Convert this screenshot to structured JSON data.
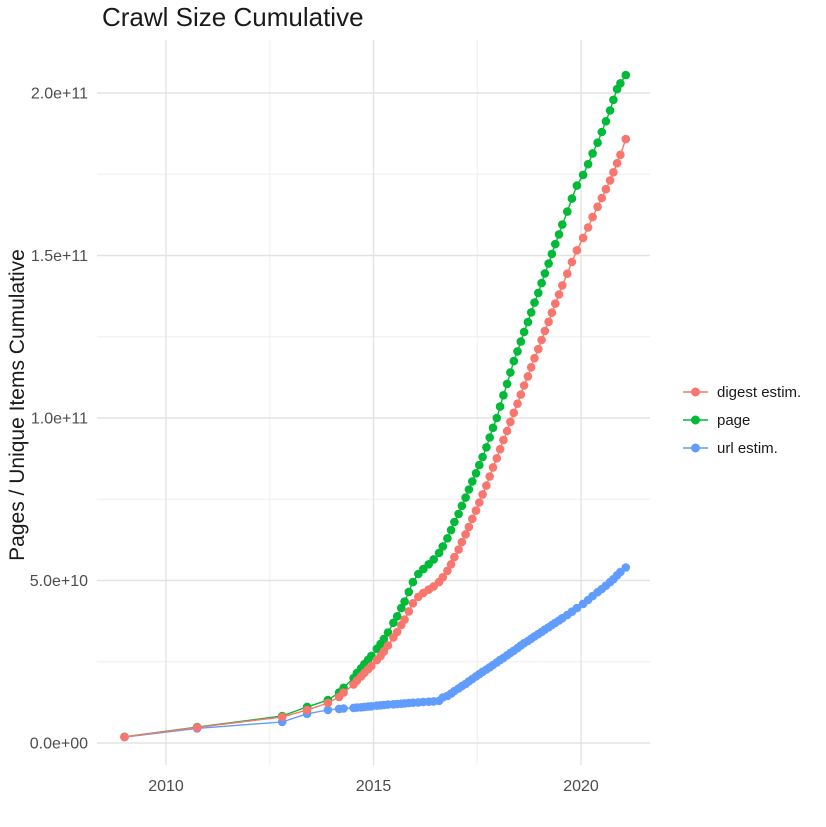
{
  "title": "Crawl Size Cumulative",
  "y_axis": {
    "label": "Pages / Unique Items Cumulative",
    "ticks": [
      "0.0e+00",
      "5.0e+10",
      "1.0e+11",
      "1.5e+11",
      "2.0e+11"
    ],
    "tick_values": [
      0,
      50000000000.0,
      100000000000.0,
      150000000000.0,
      200000000000.0
    ]
  },
  "x_axis": {
    "label": "",
    "ticks": [
      "2010",
      "2015",
      "2020"
    ],
    "tick_values": [
      2010,
      2015,
      2020
    ]
  },
  "legend": {
    "position": "right",
    "items": [
      {
        "label": "digest estim.",
        "color": "#F8766D"
      },
      {
        "label": "page",
        "color": "#00BA38"
      },
      {
        "label": "url estim.",
        "color": "#619CFF"
      }
    ]
  },
  "colors": {
    "grid_major": "#e3e3e3",
    "grid_minor": "#f1f1f1",
    "tick_text": "#4d4d4d",
    "text": "#1a1a1a",
    "background": "#ffffff"
  },
  "chart_data": {
    "type": "scatter",
    "title": "Crawl Size Cumulative",
    "xlabel": "",
    "ylabel": "Pages / Unique Items Cumulative",
    "xlim": [
      2008.4,
      2021.7
    ],
    "ylim": [
      0,
      215000000000.0
    ],
    "grid": true,
    "legend_position": "right",
    "marker_line": true,
    "series": [
      {
        "name": "page",
        "color": "#00BA38",
        "points": [
          [
            2009.0,
            1900000000.0
          ],
          [
            2010.75,
            4900000000.0
          ],
          [
            2012.8,
            8300000000.0
          ],
          [
            2013.4,
            11100000000.0
          ],
          [
            2013.9,
            13200000000.0
          ],
          [
            2014.17,
            15500000000.0
          ],
          [
            2014.28,
            17000000000.0
          ],
          [
            2014.52,
            20000000000.0
          ],
          [
            2014.6,
            21500000000.0
          ],
          [
            2014.7,
            23000000000.0
          ],
          [
            2014.78,
            24300000000.0
          ],
          [
            2014.87,
            25600000000.0
          ],
          [
            2014.95,
            26800000000.0
          ],
          [
            2015.08,
            29000000000.0
          ],
          [
            2015.17,
            30500000000.0
          ],
          [
            2015.25,
            32000000000.0
          ],
          [
            2015.35,
            34000000000.0
          ],
          [
            2015.48,
            37000000000.0
          ],
          [
            2015.57,
            39000000000.0
          ],
          [
            2015.67,
            41500000000.0
          ],
          [
            2015.75,
            43500000000.0
          ],
          [
            2015.85,
            46500000000.0
          ],
          [
            2015.95,
            49500000000.0
          ],
          [
            2016.08,
            52000000000.0
          ],
          [
            2016.2,
            53500000000.0
          ],
          [
            2016.33,
            55000000000.0
          ],
          [
            2016.45,
            56500000000.0
          ],
          [
            2016.58,
            58500000000.0
          ],
          [
            2016.67,
            60500000000.0
          ],
          [
            2016.78,
            63000000000.0
          ],
          [
            2016.87,
            65500000000.0
          ],
          [
            2016.95,
            68000000000.0
          ],
          [
            2017.05,
            70500000000.0
          ],
          [
            2017.13,
            73000000000.0
          ],
          [
            2017.22,
            75500000000.0
          ],
          [
            2017.3,
            78000000000.0
          ],
          [
            2017.38,
            80500000000.0
          ],
          [
            2017.47,
            83000000000.0
          ],
          [
            2017.55,
            85500000000.0
          ],
          [
            2017.63,
            88000000000.0
          ],
          [
            2017.72,
            91000000000.0
          ],
          [
            2017.8,
            94000000000.0
          ],
          [
            2017.88,
            97000000000.0
          ],
          [
            2017.97,
            100000000000.0
          ],
          [
            2018.05,
            103500000000.0
          ],
          [
            2018.13,
            107000000000.0
          ],
          [
            2018.22,
            110500000000.0
          ],
          [
            2018.3,
            114000000000.0
          ],
          [
            2018.38,
            117500000000.0
          ],
          [
            2018.47,
            120500000000.0
          ],
          [
            2018.55,
            123500000000.0
          ],
          [
            2018.63,
            126500000000.0
          ],
          [
            2018.72,
            129500000000.0
          ],
          [
            2018.8,
            132500000000.0
          ],
          [
            2018.88,
            135500000000.0
          ],
          [
            2018.97,
            138500000000.0
          ],
          [
            2019.05,
            141500000000.0
          ],
          [
            2019.13,
            144500000000.0
          ],
          [
            2019.22,
            147500000000.0
          ],
          [
            2019.3,
            150500000000.0
          ],
          [
            2019.38,
            153500000000.0
          ],
          [
            2019.47,
            156500000000.0
          ],
          [
            2019.55,
            159500000000.0
          ],
          [
            2019.67,
            163500000000.0
          ],
          [
            2019.78,
            167500000000.0
          ],
          [
            2019.9,
            171500000000.0
          ],
          [
            2020.05,
            174800000000.0
          ],
          [
            2020.17,
            178100000000.0
          ],
          [
            2020.28,
            181400000000.0
          ],
          [
            2020.4,
            184700000000.0
          ],
          [
            2020.5,
            188000000000.0
          ],
          [
            2020.6,
            191300000000.0
          ],
          [
            2020.7,
            194600000000.0
          ],
          [
            2020.78,
            197900000000.0
          ],
          [
            2020.87,
            201200000000.0
          ],
          [
            2020.95,
            203000000000.0
          ],
          [
            2021.08,
            205500000000.0
          ]
        ]
      },
      {
        "name": "url estim.",
        "color": "#619CFF",
        "points": [
          [
            2009.0,
            1800000000.0
          ],
          [
            2010.75,
            4500000000.0
          ],
          [
            2012.8,
            6500000000.0
          ],
          [
            2013.4,
            9000000000.0
          ],
          [
            2013.9,
            10200000000.0
          ],
          [
            2014.17,
            10500000000.0
          ],
          [
            2014.28,
            10600000000.0
          ],
          [
            2014.52,
            10800000000.0
          ],
          [
            2014.6,
            10900000000.0
          ],
          [
            2014.7,
            11000000000.0
          ],
          [
            2014.78,
            11100000000.0
          ],
          [
            2014.87,
            11200000000.0
          ],
          [
            2014.95,
            11300000000.0
          ],
          [
            2015.08,
            11500000000.0
          ],
          [
            2015.17,
            11600000000.0
          ],
          [
            2015.25,
            11700000000.0
          ],
          [
            2015.35,
            11800000000.0
          ],
          [
            2015.48,
            11900000000.0
          ],
          [
            2015.57,
            12000000000.0
          ],
          [
            2015.67,
            12100000000.0
          ],
          [
            2015.75,
            12200000000.0
          ],
          [
            2015.85,
            12300000000.0
          ],
          [
            2015.95,
            12400000000.0
          ],
          [
            2016.08,
            12500000000.0
          ],
          [
            2016.2,
            12600000000.0
          ],
          [
            2016.33,
            12700000000.0
          ],
          [
            2016.45,
            12800000000.0
          ],
          [
            2016.58,
            13000000000.0
          ],
          [
            2016.67,
            14000000000.0
          ],
          [
            2016.78,
            14500000000.0
          ],
          [
            2016.87,
            15200000000.0
          ],
          [
            2016.95,
            16000000000.0
          ],
          [
            2017.05,
            16800000000.0
          ],
          [
            2017.13,
            17500000000.0
          ],
          [
            2017.22,
            18200000000.0
          ],
          [
            2017.3,
            19000000000.0
          ],
          [
            2017.38,
            19700000000.0
          ],
          [
            2017.47,
            20500000000.0
          ],
          [
            2017.55,
            21200000000.0
          ],
          [
            2017.63,
            21900000000.0
          ],
          [
            2017.72,
            22600000000.0
          ],
          [
            2017.8,
            23300000000.0
          ],
          [
            2017.88,
            24000000000.0
          ],
          [
            2017.97,
            24800000000.0
          ],
          [
            2018.05,
            25500000000.0
          ],
          [
            2018.13,
            26200000000.0
          ],
          [
            2018.22,
            27000000000.0
          ],
          [
            2018.3,
            27700000000.0
          ],
          [
            2018.38,
            28400000000.0
          ],
          [
            2018.47,
            29200000000.0
          ],
          [
            2018.55,
            30000000000.0
          ],
          [
            2018.63,
            30700000000.0
          ],
          [
            2018.72,
            31400000000.0
          ],
          [
            2018.8,
            32100000000.0
          ],
          [
            2018.88,
            32800000000.0
          ],
          [
            2018.97,
            33500000000.0
          ],
          [
            2019.05,
            34200000000.0
          ],
          [
            2019.13,
            34900000000.0
          ],
          [
            2019.22,
            35600000000.0
          ],
          [
            2019.3,
            36300000000.0
          ],
          [
            2019.38,
            37000000000.0
          ],
          [
            2019.47,
            37700000000.0
          ],
          [
            2019.55,
            38400000000.0
          ],
          [
            2019.67,
            39400000000.0
          ],
          [
            2019.78,
            40400000000.0
          ],
          [
            2019.9,
            41500000000.0
          ],
          [
            2020.05,
            42800000000.0
          ],
          [
            2020.17,
            44000000000.0
          ],
          [
            2020.28,
            45200000000.0
          ],
          [
            2020.4,
            46400000000.0
          ],
          [
            2020.5,
            47400000000.0
          ],
          [
            2020.6,
            48400000000.0
          ],
          [
            2020.7,
            49500000000.0
          ],
          [
            2020.78,
            50400000000.0
          ],
          [
            2020.87,
            51600000000.0
          ],
          [
            2020.95,
            52600000000.0
          ],
          [
            2021.08,
            54000000000.0
          ]
        ]
      },
      {
        "name": "digest estim.",
        "color": "#F8766D",
        "points": [
          [
            2009.0,
            1850000000.0
          ],
          [
            2010.75,
            4800000000.0
          ],
          [
            2012.8,
            8000000000.0
          ],
          [
            2013.4,
            10200000000.0
          ],
          [
            2013.9,
            12300000000.0
          ],
          [
            2014.17,
            14200000000.0
          ],
          [
            2014.28,
            15500000000.0
          ],
          [
            2014.52,
            18000000000.0
          ],
          [
            2014.6,
            19200000000.0
          ],
          [
            2014.7,
            20500000000.0
          ],
          [
            2014.78,
            21600000000.0
          ],
          [
            2014.87,
            22700000000.0
          ],
          [
            2014.95,
            23700000000.0
          ],
          [
            2015.08,
            25500000000.0
          ],
          [
            2015.17,
            26800000000.0
          ],
          [
            2015.25,
            28200000000.0
          ],
          [
            2015.35,
            30000000000.0
          ],
          [
            2015.48,
            32500000000.0
          ],
          [
            2015.57,
            34200000000.0
          ],
          [
            2015.67,
            36300000000.0
          ],
          [
            2015.75,
            38000000000.0
          ],
          [
            2015.85,
            40500000000.0
          ],
          [
            2015.95,
            43000000000.0
          ],
          [
            2016.08,
            45000000000.0
          ],
          [
            2016.2,
            46200000000.0
          ],
          [
            2016.33,
            47200000000.0
          ],
          [
            2016.45,
            48200000000.0
          ],
          [
            2016.58,
            49500000000.0
          ],
          [
            2016.67,
            51000000000.0
          ],
          [
            2016.78,
            53000000000.0
          ],
          [
            2016.87,
            55000000000.0
          ],
          [
            2016.95,
            57200000000.0
          ],
          [
            2017.05,
            59500000000.0
          ],
          [
            2017.13,
            61800000000.0
          ],
          [
            2017.22,
            64200000000.0
          ],
          [
            2017.3,
            66500000000.0
          ],
          [
            2017.38,
            69000000000.0
          ],
          [
            2017.47,
            71500000000.0
          ],
          [
            2017.55,
            74000000000.0
          ],
          [
            2017.63,
            76500000000.0
          ],
          [
            2017.72,
            79200000000.0
          ],
          [
            2017.8,
            82000000000.0
          ],
          [
            2017.88,
            84800000000.0
          ],
          [
            2017.97,
            87600000000.0
          ],
          [
            2018.05,
            90400000000.0
          ],
          [
            2018.13,
            93200000000.0
          ],
          [
            2018.22,
            96000000000.0
          ],
          [
            2018.3,
            98800000000.0
          ],
          [
            2018.38,
            101600000000.0
          ],
          [
            2018.47,
            104400000000.0
          ],
          [
            2018.55,
            107200000000.0
          ],
          [
            2018.63,
            110000000000.0
          ],
          [
            2018.72,
            112800000000.0
          ],
          [
            2018.8,
            115600000000.0
          ],
          [
            2018.88,
            118400000000.0
          ],
          [
            2018.97,
            121200000000.0
          ],
          [
            2019.05,
            124000000000.0
          ],
          [
            2019.13,
            126800000000.0
          ],
          [
            2019.22,
            129600000000.0
          ],
          [
            2019.3,
            132400000000.0
          ],
          [
            2019.38,
            135200000000.0
          ],
          [
            2019.47,
            138000000000.0
          ],
          [
            2019.55,
            140800000000.0
          ],
          [
            2019.67,
            144400000000.0
          ],
          [
            2019.78,
            148000000000.0
          ],
          [
            2019.9,
            151600000000.0
          ],
          [
            2020.05,
            155400000000.0
          ],
          [
            2020.17,
            158600000000.0
          ],
          [
            2020.28,
            161800000000.0
          ],
          [
            2020.4,
            165000000000.0
          ],
          [
            2020.5,
            167700000000.0
          ],
          [
            2020.6,
            170400000000.0
          ],
          [
            2020.7,
            173100000000.0
          ],
          [
            2020.78,
            175600000000.0
          ],
          [
            2020.87,
            178400000000.0
          ],
          [
            2020.95,
            181000000000.0
          ],
          [
            2021.08,
            185800000000.0
          ]
        ]
      }
    ]
  }
}
